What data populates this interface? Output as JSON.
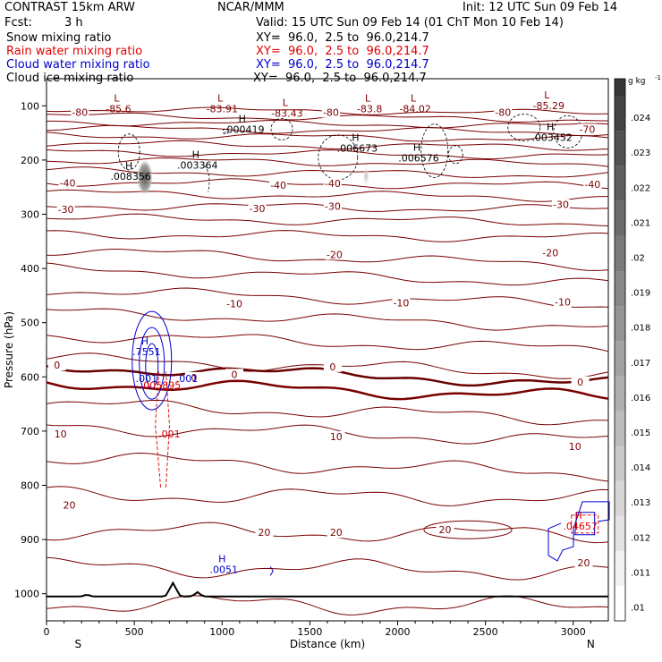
{
  "header": {
    "model": "CONTRAST 15km ARW",
    "org": "NCAR/MMM",
    "init": "Init: 12 UTC Sun 09 Feb 14",
    "fcst_label": "Fcst:",
    "fcst_value": "3 h",
    "valid": "Valid: 15 UTC Sun 09 Feb 14 (01 ChT Mon 10 Feb 14)",
    "fields": [
      {
        "name": "Snow mixing ratio",
        "xy": "XY=  96.0,  2.5 to  96.0,214.7",
        "color": "#000000"
      },
      {
        "name": "Rain water mixing ratio",
        "xy": "XY=  96.0,  2.5 to  96.0,214.7",
        "color": "#e00000"
      },
      {
        "name": "Cloud water mixing ratio",
        "xy": "XY=  96.0,  2.5 to  96.0,214.7",
        "color": "#0000cc"
      },
      {
        "name": "Cloud ice mixing ratio",
        "xy": "XY=  96.0,  2.5 to  96.0,214.7",
        "color": "#000000"
      }
    ]
  },
  "chart_data": {
    "type": "cross-section contour",
    "xlabel": "Distance (km)",
    "ylabel": "Pressure (hPa)",
    "xlim": [
      0,
      3200
    ],
    "ylim": [
      1050,
      50
    ],
    "xticks": [
      0,
      500,
      1000,
      1500,
      2000,
      2500,
      3000
    ],
    "yticks": [
      100,
      200,
      300,
      400,
      500,
      600,
      700,
      800,
      900,
      1000
    ],
    "end_labels": {
      "left": "S",
      "right": "N"
    },
    "colorbar": {
      "unit": "g kg",
      "unit_exp": "-1",
      "levels": [
        ".01",
        ".011",
        ".012",
        ".013",
        ".014",
        ".015",
        ".016",
        ".017",
        ".018",
        ".019",
        ".02",
        ".021",
        ".022",
        ".023",
        ".024"
      ]
    },
    "isotherm_labels": [
      {
        "text": "-80",
        "x": 190,
        "p": 112
      },
      {
        "text": "-80",
        "x": 1620,
        "p": 112
      },
      {
        "text": "-80",
        "x": 2600,
        "p": 112
      },
      {
        "text": "-70",
        "x": 3080,
        "p": 143
      },
      {
        "text": "-40",
        "x": 120,
        "p": 242
      },
      {
        "text": "-40",
        "x": 1320,
        "p": 246
      },
      {
        "text": "-40",
        "x": 1630,
        "p": 243
      },
      {
        "text": "-40",
        "x": 3110,
        "p": 245
      },
      {
        "text": "-30",
        "x": 110,
        "p": 291
      },
      {
        "text": "-30",
        "x": 1200,
        "p": 289
      },
      {
        "text": "-30",
        "x": 1630,
        "p": 285
      },
      {
        "text": "-30",
        "x": 2930,
        "p": 282
      },
      {
        "text": "-20",
        "x": 1640,
        "p": 374
      },
      {
        "text": "-20",
        "x": 2870,
        "p": 371
      },
      {
        "text": "-10",
        "x": 1070,
        "p": 465
      },
      {
        "text": "-10",
        "x": 2020,
        "p": 463
      },
      {
        "text": "-10",
        "x": 2940,
        "p": 462
      },
      {
        "text": "0",
        "x": 60,
        "p": 578
      },
      {
        "text": "0",
        "x": 840,
        "p": 601
      },
      {
        "text": "0",
        "x": 1070,
        "p": 595
      },
      {
        "text": "0",
        "x": 1630,
        "p": 581
      },
      {
        "text": "0",
        "x": 3040,
        "p": 609
      },
      {
        "text": "10",
        "x": 80,
        "p": 705
      },
      {
        "text": "10",
        "x": 1650,
        "p": 710
      },
      {
        "text": "10",
        "x": 3010,
        "p": 728
      },
      {
        "text": "20",
        "x": 130,
        "p": 836
      },
      {
        "text": "20",
        "x": 1240,
        "p": 887
      },
      {
        "text": "20",
        "x": 1650,
        "p": 887
      },
      {
        "text": "20",
        "x": 2270,
        "p": 882
      },
      {
        "text": "20",
        "x": 3060,
        "p": 943
      }
    ],
    "extrema": [
      {
        "label": "L",
        "value": "-85.6",
        "x": 410,
        "p": 92,
        "color": "#800000"
      },
      {
        "label": "L",
        "value": "-83.91",
        "x": 1000,
        "p": 92,
        "color": "#800000"
      },
      {
        "label": "L",
        "value": "-83.43",
        "x": 1370,
        "p": 100,
        "color": "#800000"
      },
      {
        "label": "L",
        "value": "-83.8",
        "x": 1840,
        "p": 92,
        "color": "#800000"
      },
      {
        "label": "L",
        "value": "-84.02",
        "x": 2100,
        "p": 92,
        "color": "#800000"
      },
      {
        "label": "L",
        "value": "-85.29",
        "x": 2860,
        "p": 86,
        "color": "#800000"
      },
      {
        "label": "H",
        "value": ".000419",
        "x": 1125,
        "p": 130,
        "color": "#000000"
      },
      {
        "label": "H",
        "value": ".003452",
        "x": 2880,
        "p": 145,
        "color": "#000000"
      },
      {
        "label": "H",
        "value": ".006673",
        "x": 1770,
        "p": 165,
        "color": "#000000"
      },
      {
        "label": "H",
        "value": ".006576",
        "x": 2120,
        "p": 183,
        "color": "#000000"
      },
      {
        "label": "H",
        "value": ".003364",
        "x": 860,
        "p": 196,
        "color": "#000000"
      },
      {
        "label": "H",
        "value": ".008356",
        "x": 480,
        "p": 217,
        "color": "#000000"
      },
      {
        "label": "H",
        "value": ".7551",
        "x": 570,
        "p": 540,
        "color": "#0000cc"
      },
      {
        "label": "",
        "value": ".001",
        "x": 570,
        "p": 590,
        "color": "#0000cc"
      },
      {
        "label": "",
        "value": ".001",
        "x": 800,
        "p": 590,
        "color": "#0000cc"
      },
      {
        "label": "",
        "value": ".005895",
        "x": 650,
        "p": 602,
        "color": "#e00000"
      },
      {
        "label": "",
        "value": ".001",
        "x": 700,
        "p": 692,
        "color": "#e00000"
      },
      {
        "label": "H",
        "value": ".0051",
        "x": 1010,
        "p": 942,
        "color": "#0000cc"
      },
      {
        "label": "H",
        "value": ".04657",
        "x": 3040,
        "p": 862,
        "color": "#e00000"
      }
    ]
  }
}
